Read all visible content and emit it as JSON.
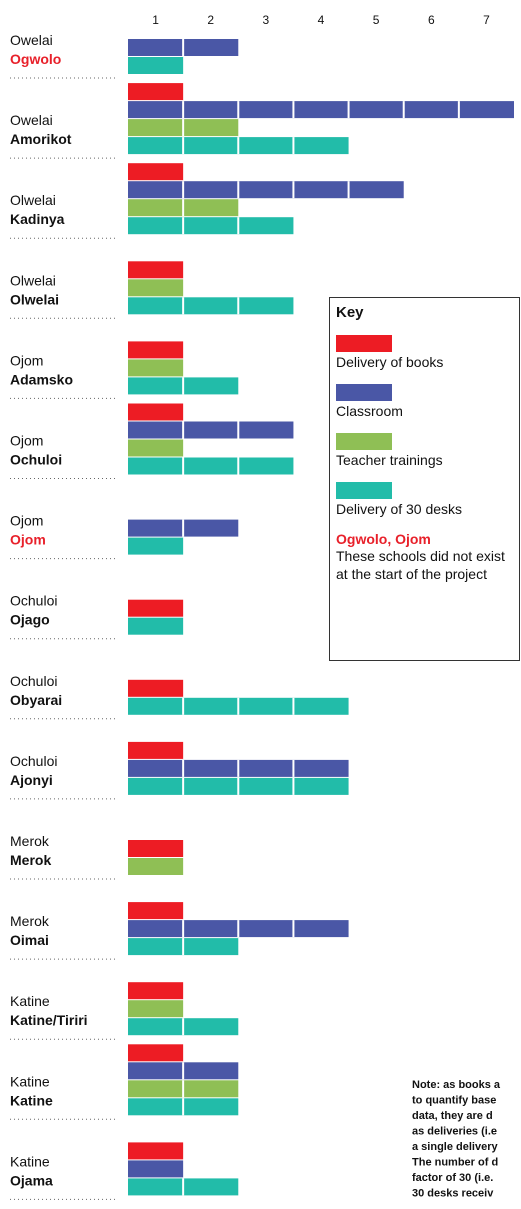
{
  "chart_data": {
    "type": "bar",
    "orientation": "horizontal",
    "groups": [
      "Owelai",
      "Owelai",
      "Olwelai",
      "Olwelai",
      "Ojom",
      "Ojom",
      "Ojom",
      "Ochuloi",
      "Ochuloi",
      "Ochuloi",
      "Merok",
      "Merok",
      "Katine",
      "Katine",
      "Katine"
    ],
    "categories": [
      "Ogwolo",
      "Amorikot",
      "Kadinya",
      "Olwelai",
      "Adamsko",
      "Ochuloi",
      "Ojom",
      "Ojago",
      "Obyarai",
      "Ajonyi",
      "Merok",
      "Oimai",
      "Katine/Tiriri",
      "Katine",
      "Ojama"
    ],
    "category_colors": [
      "#e8202a",
      "#111111",
      "#111111",
      "#111111",
      "#111111",
      "#111111",
      "#e8202a",
      "#111111",
      "#111111",
      "#111111",
      "#111111",
      "#111111",
      "#111111",
      "#111111",
      "#111111"
    ],
    "series": [
      {
        "name": "Delivery of books",
        "color": "#ed1c24",
        "values": [
          null,
          1,
          1,
          1,
          1,
          1,
          null,
          1,
          1,
          1,
          1,
          1,
          1,
          1,
          1
        ]
      },
      {
        "name": "Classroom",
        "color": "#4a57a6",
        "values": [
          2,
          7,
          5,
          null,
          null,
          3,
          2,
          null,
          null,
          4,
          null,
          4,
          null,
          2,
          1
        ]
      },
      {
        "name": "Teacher trainings",
        "color": "#8fbf55",
        "values": [
          null,
          2,
          2,
          1,
          1,
          1,
          null,
          null,
          null,
          null,
          1,
          null,
          1,
          2,
          null
        ]
      },
      {
        "name": "Delivery of 30 desks",
        "color": "#22bca9",
        "values": [
          1,
          4,
          3,
          3,
          2,
          3,
          1,
          1,
          4,
          4,
          null,
          2,
          2,
          2,
          2
        ]
      }
    ],
    "xlim": [
      0,
      7
    ],
    "xticks": [
      1,
      2,
      3,
      4,
      5,
      6,
      7
    ],
    "legend": {
      "title": "Key",
      "note_title": "Ogwolo, Ojom",
      "note": "These schools did not exist at the start of the project"
    },
    "footnote": [
      "Note: as books a",
      "to quantify base",
      "data, they are d",
      "as deliveries (i.e",
      "a single delivery",
      "The number of d",
      "factor of 30 (i.e.",
      "30 desks receiv"
    ]
  }
}
